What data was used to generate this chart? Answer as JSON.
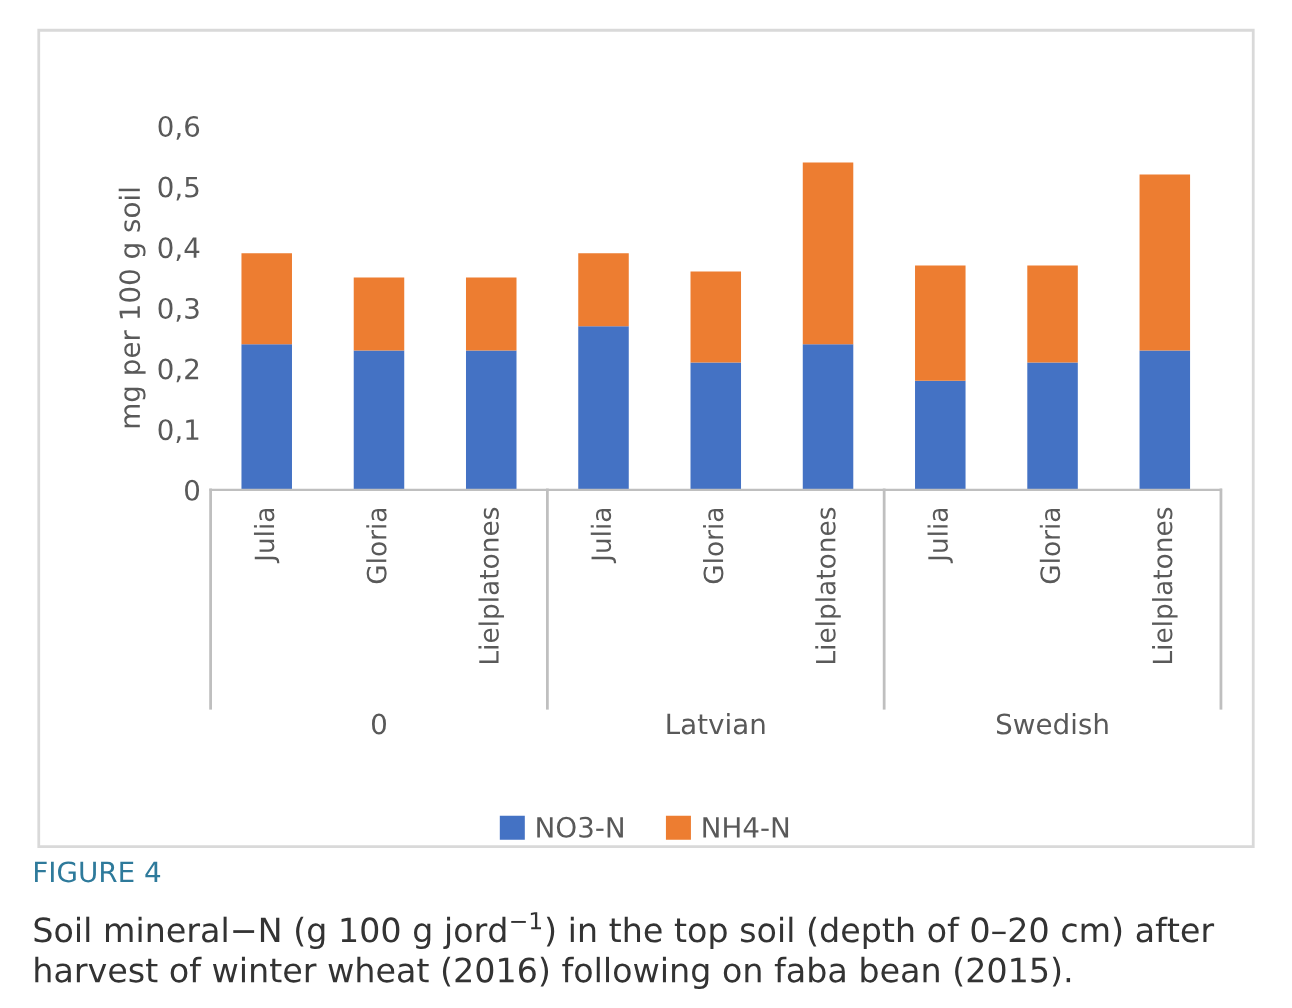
{
  "chart_data": {
    "type": "bar",
    "stacked": true,
    "categories": [
      "Julia",
      "Gloria",
      "Lielplatones",
      "Julia",
      "Gloria",
      "Lielplatones",
      "Julia",
      "Gloria",
      "Lielplatones"
    ],
    "series": [
      {
        "name": "NO3-N",
        "color": "#4472c4",
        "values": [
          0.24,
          0.23,
          0.23,
          0.27,
          0.21,
          0.24,
          0.18,
          0.21,
          0.23
        ]
      },
      {
        "name": "NH4-N",
        "color": "#ed7d31",
        "values": [
          0.15,
          0.12,
          0.12,
          0.12,
          0.15,
          0.3,
          0.19,
          0.16,
          0.29
        ]
      }
    ],
    "ylabel": "mg per 100 g soil",
    "ylim": [
      0,
      0.6
    ],
    "yticks": [
      0,
      {
        "value": 0.1,
        "label": "0,1"
      },
      {
        "value": 0.2,
        "label": "0,2"
      },
      {
        "value": 0.3,
        "label": "0,3"
      },
      {
        "value": 0.4,
        "label": "0,4"
      },
      {
        "value": 0.5,
        "label": "0,5"
      },
      {
        "value": 0.6,
        "label": "0,6"
      }
    ],
    "grid": false,
    "legend": "bottom",
    "annotations": [
      "0",
      "Latvian",
      "Swedish",
      "FIGURE 4",
      "Soil mineral−N (g 100 g jord$^{−1}$) in the top soil (depth of 0–20 cm) after harvest of winter wheat (2016) following on faba bean (2015)."
    ]
  }
}
